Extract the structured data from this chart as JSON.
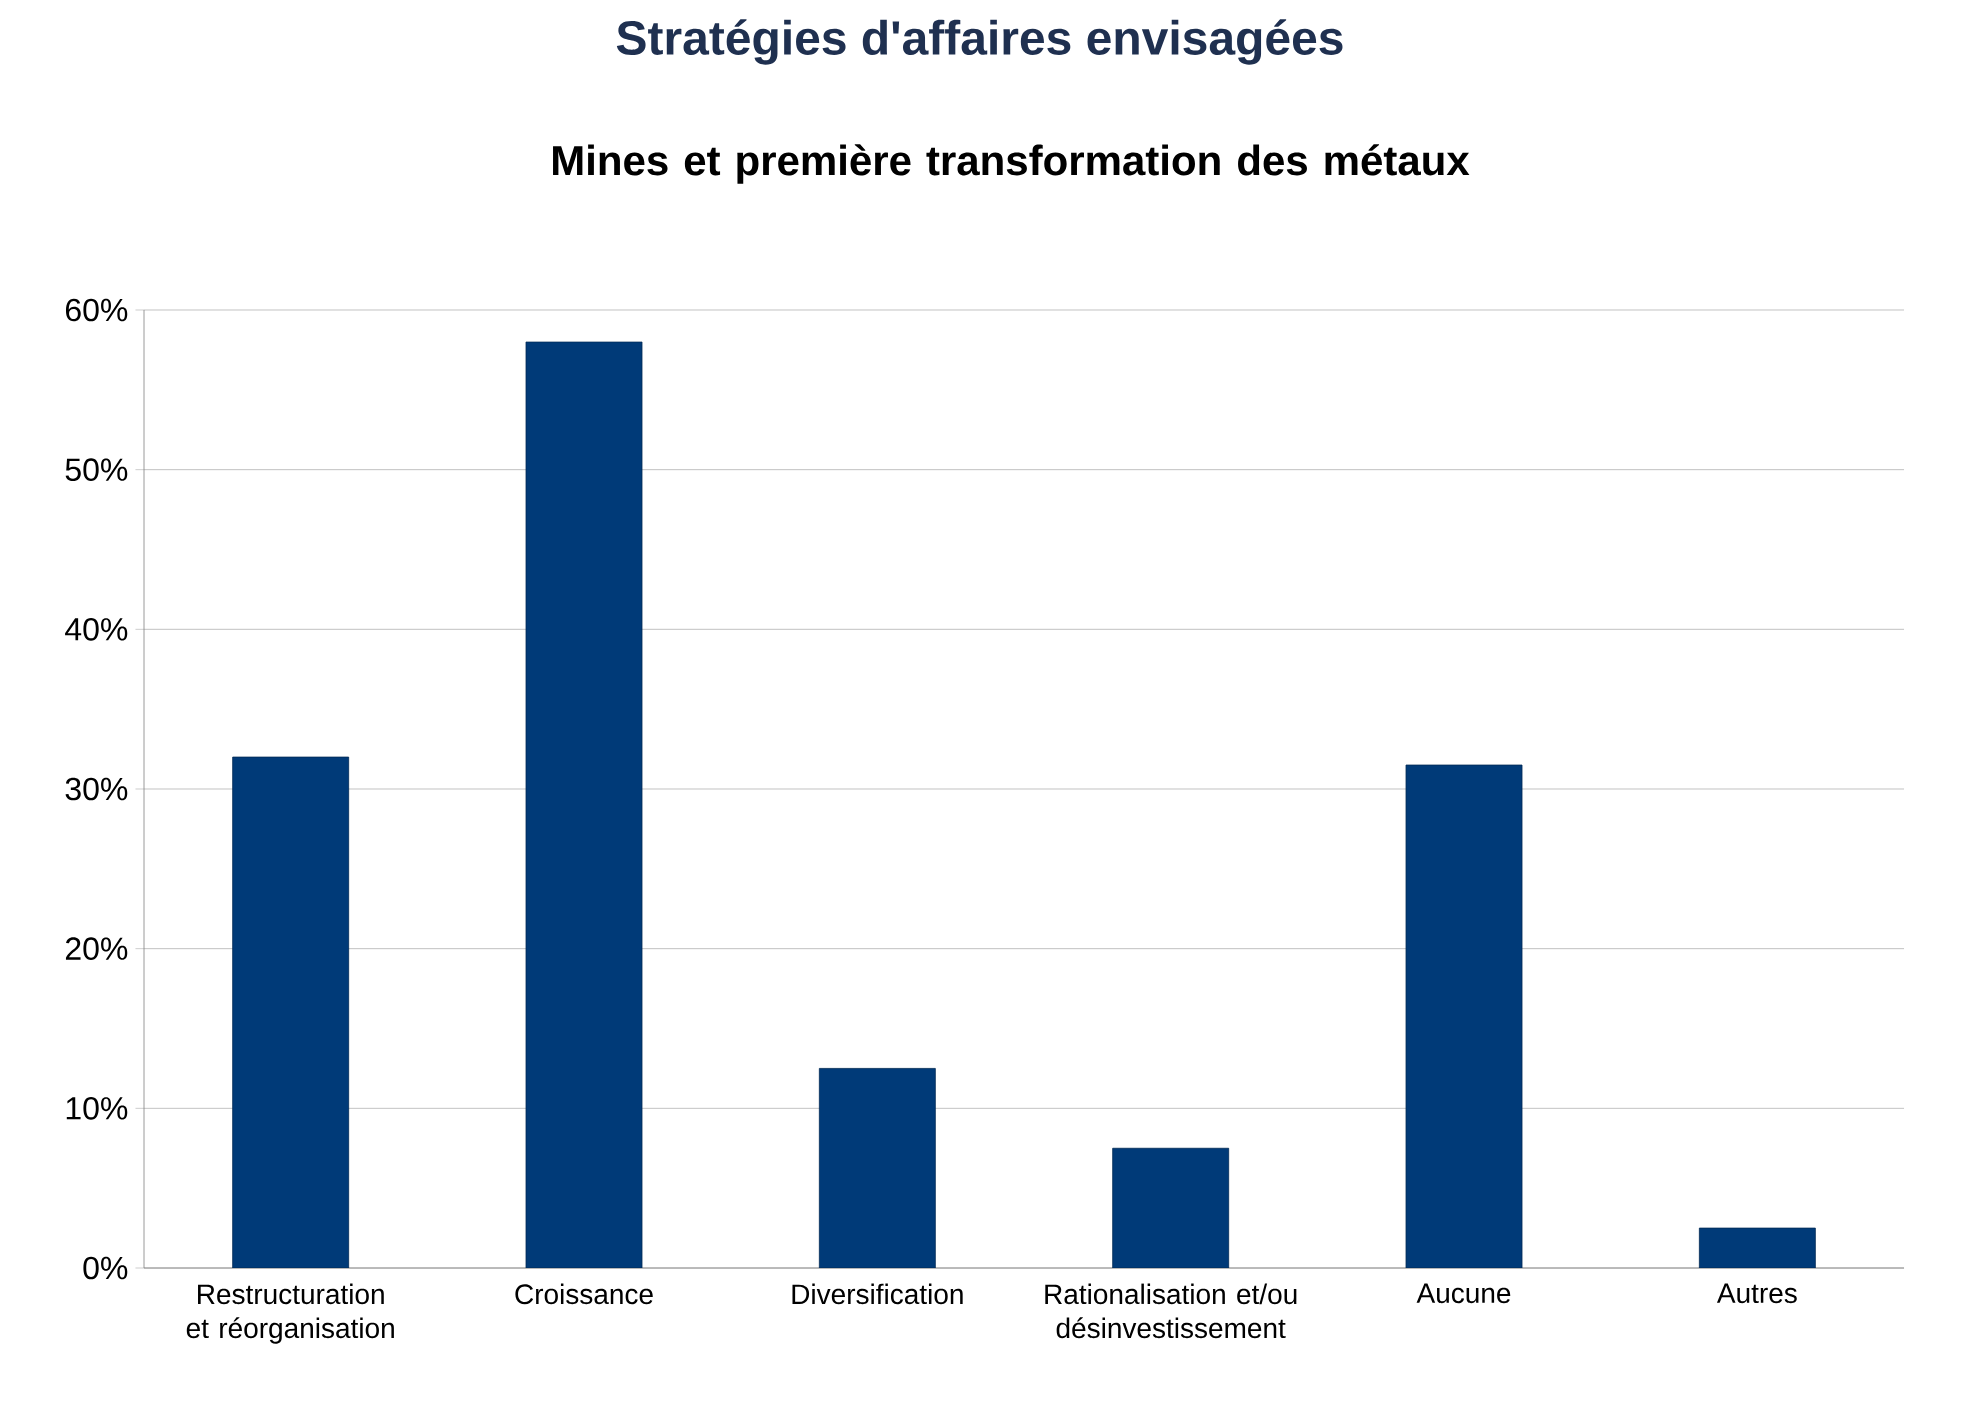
{
  "chart_data": {
    "type": "bar",
    "title": "Stratégies d'affaires envisagées",
    "subtitle": "Mines et première transformation des métaux",
    "categories": [
      "Restructuration et réorganisation",
      "Croissance",
      "Diversification",
      "Rationalisation et/ou désinvestissement",
      "Aucune",
      "Autres"
    ],
    "values": [
      32,
      58,
      12.5,
      7.5,
      31.5,
      2.5
    ],
    "color": "#003a78",
    "ylim": [
      0,
      60
    ],
    "yticks": [
      {
        "value": 0,
        "label": "0%"
      },
      {
        "value": 10,
        "label": "10%"
      },
      {
        "value": 20,
        "label": "20%"
      },
      {
        "value": 30,
        "label": "30%"
      },
      {
        "value": 40,
        "label": "40%"
      },
      {
        "value": 50,
        "label": "50%"
      },
      {
        "value": 60,
        "label": "60%"
      }
    ],
    "grid": "y"
  }
}
